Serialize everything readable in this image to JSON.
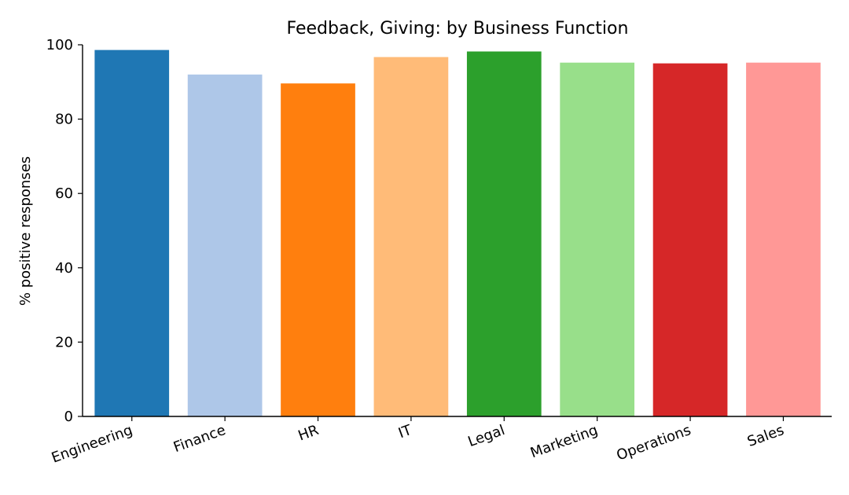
{
  "chart_data": {
    "type": "bar",
    "title": "Feedback, Giving: by Business Function",
    "xlabel": "",
    "ylabel": "% positive responses",
    "ylim": [
      0,
      100
    ],
    "yticks": [
      0,
      20,
      40,
      60,
      80,
      100
    ],
    "categories": [
      "Engineering",
      "Finance",
      "HR",
      "IT",
      "Legal",
      "Marketing",
      "Operations",
      "Sales"
    ],
    "values": [
      98.6,
      92.0,
      89.6,
      96.7,
      98.2,
      95.2,
      95.0,
      95.2
    ],
    "colors": [
      "#1f77b4",
      "#aec7e8",
      "#ff7f0e",
      "#ffbb78",
      "#2ca02c",
      "#98df8a",
      "#d62728",
      "#ff9896"
    ],
    "grid": false,
    "legend": "none",
    "x_tick_rotation_deg": -20
  }
}
